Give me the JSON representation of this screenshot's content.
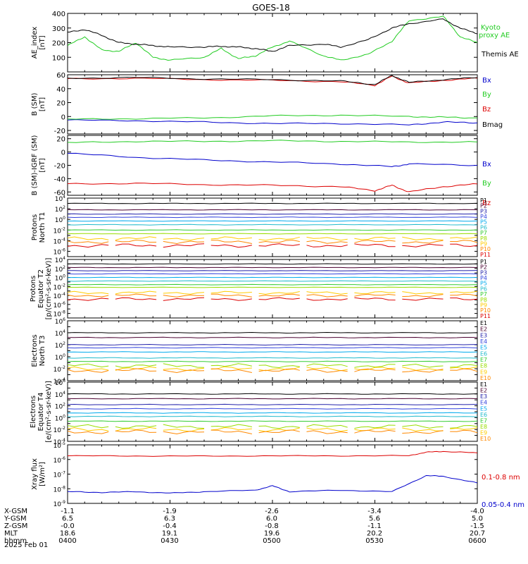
{
  "title": "GOES-18",
  "colors": {
    "black": "#000000",
    "green": "#22cc22",
    "blue": "#0000cc",
    "red": "#dd0000",
    "p_scale": [
      "#000000",
      "#4b0030",
      "#2222aa",
      "#3344dd",
      "#00aaee",
      "#22bbcc",
      "#33cc33",
      "#99dd00",
      "#ffcc00",
      "#ff8800",
      "#dd0000"
    ]
  },
  "chart_data": [
    {
      "type": "line",
      "panel": "ae",
      "ylabel": "AE_index [nT]",
      "ylim": [
        0,
        400
      ],
      "yticks": [
        100,
        200,
        300,
        400
      ],
      "ytick_labels": [
        "100",
        "200",
        "300",
        "400"
      ],
      "legend": [
        "Kyoto proxy AE",
        "Themis AE"
      ],
      "series": [
        {
          "name": "Kyoto proxy AE",
          "color": "#22cc22",
          "x": [
            0,
            5,
            10,
            15,
            20,
            25,
            30,
            40,
            45,
            50,
            55,
            60,
            65,
            75,
            80,
            88,
            95,
            100,
            110,
            115,
            120
          ],
          "y": [
            180,
            240,
            150,
            140,
            200,
            100,
            80,
            100,
            160,
            90,
            110,
            170,
            210,
            110,
            80,
            120,
            210,
            350,
            380,
            240,
            200
          ]
        },
        {
          "name": "Themis AE",
          "color": "#000000",
          "x": [
            0,
            5,
            10,
            15,
            20,
            25,
            30,
            40,
            45,
            50,
            55,
            60,
            65,
            75,
            80,
            88,
            95,
            100,
            110,
            115,
            120
          ],
          "y": [
            270,
            290,
            250,
            200,
            190,
            180,
            170,
            170,
            175,
            170,
            160,
            140,
            180,
            190,
            170,
            220,
            300,
            330,
            360,
            300,
            260
          ]
        }
      ]
    },
    {
      "type": "line",
      "panel": "bsm",
      "ylabel": "B (SM) [nT]",
      "ylim": [
        -25,
        60
      ],
      "yticks": [
        -20,
        0,
        20,
        40,
        60
      ],
      "ytick_labels": [
        "-20",
        "0",
        "20",
        "40",
        "60"
      ],
      "legend": [
        "Bx",
        "By",
        "Bz",
        "Bmag"
      ],
      "series": [
        {
          "name": "Bx",
          "color": "#0000cc",
          "x": [
            0,
            20,
            40,
            60,
            80,
            100,
            110,
            120
          ],
          "y": [
            -5,
            -6,
            -8,
            -10,
            -10,
            -12,
            -8,
            -9
          ]
        },
        {
          "name": "By",
          "color": "#22cc22",
          "x": [
            0,
            20,
            40,
            60,
            80,
            100,
            110,
            120
          ],
          "y": [
            -4,
            -3,
            -2,
            1,
            2,
            0,
            -1,
            -2
          ]
        },
        {
          "name": "Bz",
          "color": "#dd0000",
          "x": [
            0,
            20,
            40,
            60,
            80,
            90,
            95,
            100,
            110,
            120
          ],
          "y": [
            54,
            55,
            53,
            52,
            50,
            45,
            58,
            48,
            52,
            55
          ]
        },
        {
          "name": "Bmag",
          "color": "#000000",
          "x": [
            0,
            20,
            40,
            60,
            80,
            90,
            95,
            100,
            110,
            120
          ],
          "y": [
            55,
            56,
            54,
            53,
            51,
            46,
            59,
            49,
            53,
            56
          ]
        }
      ]
    },
    {
      "type": "line",
      "panel": "bigrf",
      "ylabel": "B (SM)-IGRF (SM) [nT]",
      "ylim": [
        -65,
        25
      ],
      "yticks": [
        -60,
        -40,
        -20,
        0,
        20
      ],
      "ytick_labels": [
        "-60",
        "-40",
        "-20",
        "0",
        "20"
      ],
      "legend": [
        "Bx",
        "By",
        "Bz"
      ],
      "series": [
        {
          "name": "Bx",
          "color": "#0000cc",
          "x": [
            0,
            20,
            40,
            60,
            80,
            95,
            100,
            120
          ],
          "y": [
            -2,
            -8,
            -12,
            -15,
            -18,
            -22,
            -18,
            -20
          ]
        },
        {
          "name": "By",
          "color": "#22cc22",
          "x": [
            0,
            20,
            40,
            60,
            80,
            100,
            120
          ],
          "y": [
            14,
            16,
            16,
            17,
            16,
            15,
            15
          ]
        },
        {
          "name": "Bz",
          "color": "#dd0000",
          "x": [
            0,
            20,
            40,
            60,
            80,
            90,
            95,
            100,
            110,
            120
          ],
          "y": [
            -48,
            -47,
            -49,
            -50,
            -52,
            -58,
            -50,
            -60,
            -52,
            -48
          ]
        }
      ]
    },
    {
      "type": "line",
      "panel": "protons_t1",
      "ylabel": "Protons North T1",
      "log": true,
      "ylim_exp": [
        -7,
        4
      ],
      "ytick_labels": [
        "10^4",
        "10^2",
        "10^0",
        "10^-2",
        "10^-4",
        "10^-6"
      ],
      "legend": [
        "P1",
        "P2",
        "P3",
        "P4",
        "P5",
        "P6",
        "P7",
        "P8",
        "P9",
        "P10",
        "P11"
      ],
      "levels_exp": [
        3.0,
        1.8,
        1.0,
        0.4,
        -0.3,
        -1.0,
        -2.0,
        -2.7,
        -3.6,
        -4.2,
        -4.9
      ]
    },
    {
      "type": "line",
      "panel": "protons_t2",
      "ylabel": "Protons Equator T2 [p/(cm²-s-sr-keV)]",
      "log": true,
      "ylim_exp": [
        -9,
        4
      ],
      "ytick_labels": [
        "10^4",
        "10^2",
        "10^0",
        "10^-2",
        "10^-4",
        "10^-6",
        "10^-8"
      ],
      "legend": [
        "P1",
        "P2",
        "P3",
        "P4",
        "P5",
        "P6",
        "P7",
        "P8",
        "P9",
        "P10",
        "P11"
      ],
      "levels_exp": [
        3.0,
        2.2,
        1.5,
        0.8,
        0.0,
        -0.8,
        -1.6,
        -2.2,
        -3.4,
        -4.0,
        -4.8
      ]
    },
    {
      "type": "line",
      "panel": "electrons_t3",
      "ylabel": "Electrons North T3",
      "log": true,
      "ylim_exp": [
        -4,
        6
      ],
      "ytick_labels": [
        "10^6",
        "10^4",
        "10^2",
        "10^0",
        "10^-2",
        "10^-4"
      ],
      "legend": [
        "E1",
        "E2",
        "E3",
        "E4",
        "E5",
        "E6",
        "E7",
        "E8",
        "E9",
        "E10"
      ],
      "levels_exp": [
        4.0,
        3.2,
        2.0,
        1.5,
        0.8,
        -0.2,
        -0.8,
        -1.5,
        -2.0,
        -2.3
      ]
    },
    {
      "type": "line",
      "panel": "electrons_t4",
      "ylabel": "Electrons Equator T4 [e/(cm²-s-sr-keV)]",
      "log": true,
      "ylim_exp": [
        -4,
        6
      ],
      "ytick_labels": [
        "10^6",
        "10^4",
        "10^2",
        "10^0",
        "10^-2",
        "10^-4"
      ],
      "legend": [
        "E1",
        "E2",
        "E3",
        "E4",
        "E5",
        "E6",
        "E7",
        "E8",
        "E9",
        "E10"
      ],
      "levels_exp": [
        4.0,
        3.2,
        2.2,
        1.5,
        0.8,
        0.2,
        -0.6,
        -1.5,
        -2.0,
        -2.4
      ]
    },
    {
      "type": "line",
      "panel": "xray",
      "ylabel": "Xray flux [W/m²]",
      "log": true,
      "ylim_exp": [
        -9,
        -5
      ],
      "ytick_labels": [
        "10^-5",
        "10^-6",
        "10^-7",
        "10^-8",
        "10^-9"
      ],
      "legend": [
        "0.1-0.8 nm",
        "0.05-0.4 nm"
      ],
      "series": [
        {
          "name": "0.1-0.8 nm",
          "color": "#dd0000",
          "x": [
            0,
            20,
            40,
            60,
            80,
            100,
            105,
            110,
            120
          ],
          "y_exp": [
            -5.75,
            -5.76,
            -5.77,
            -5.75,
            -5.75,
            -5.74,
            -5.5,
            -5.45,
            -5.55
          ]
        },
        {
          "name": "0.05-0.4 nm",
          "color": "#0000cc",
          "x": [
            0,
            10,
            20,
            30,
            40,
            55,
            60,
            65,
            80,
            95,
            105,
            110,
            120
          ],
          "y_exp": [
            -8.2,
            -8.25,
            -8.2,
            -8.3,
            -8.2,
            -8.1,
            -7.8,
            -8.2,
            -8.1,
            -8.2,
            -7.1,
            -7.15,
            -7.6
          ]
        }
      ]
    }
  ],
  "x_axis": {
    "rows": [
      {
        "label": "X-GSM",
        "values": [
          "-1.1",
          "-1.9",
          "-2.6",
          "-3.4",
          "-4.0"
        ]
      },
      {
        "label": "Y-GSM",
        "values": [
          "6.5",
          "6.3",
          "6.0",
          "5.6",
          "5.0"
        ]
      },
      {
        "label": "Z-GSM",
        "values": [
          "-0.0",
          "-0.4",
          "-0.8",
          "-1.1",
          "-1.5"
        ]
      },
      {
        "label": "MLT",
        "values": [
          "18.6",
          "19.1",
          "19.6",
          "20.2",
          "20.7"
        ]
      },
      {
        "label": "hhmm",
        "values": [
          "0400",
          "0430",
          "0500",
          "0530",
          "0600"
        ]
      }
    ],
    "date": "2025 Feb 01"
  }
}
